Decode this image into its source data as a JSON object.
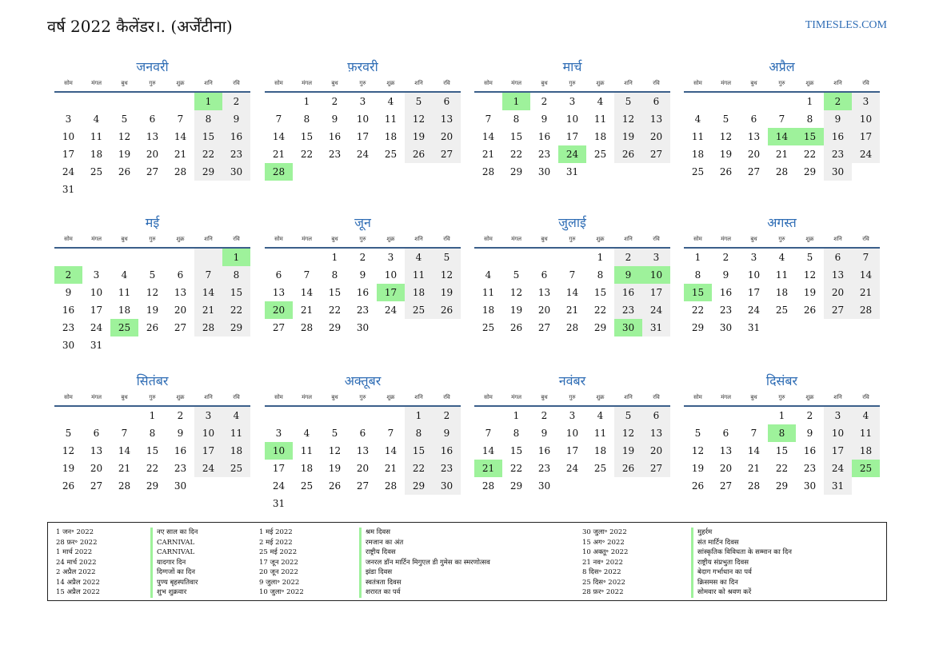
{
  "header": {
    "title": "वर्ष 2022 कैलेंडर।. (अर्जेंटीना)",
    "site": "TIMESLES.COM"
  },
  "weekdays": [
    "सोम",
    "मंगल",
    "बुध",
    "गुरु",
    "शुक्र",
    "शनि",
    "रवि"
  ],
  "months": [
    {
      "name": "जनवरी",
      "offset": 5,
      "days": 31,
      "holidays": [
        1
      ]
    },
    {
      "name": "फ़रवरी",
      "offset": 1,
      "days": 28,
      "holidays": [
        28
      ]
    },
    {
      "name": "मार्च",
      "offset": 1,
      "days": 31,
      "holidays": [
        1,
        24
      ]
    },
    {
      "name": "अप्रैल",
      "offset": 4,
      "days": 30,
      "holidays": [
        2,
        14,
        15
      ]
    },
    {
      "name": "मई",
      "offset": 6,
      "days": 31,
      "holidays": [
        1,
        2,
        25
      ]
    },
    {
      "name": "जून",
      "offset": 2,
      "days": 30,
      "holidays": [
        17,
        20
      ]
    },
    {
      "name": "जुलाई",
      "offset": 4,
      "days": 31,
      "holidays": [
        9,
        10,
        30
      ]
    },
    {
      "name": "अगस्त",
      "offset": 0,
      "days": 31,
      "holidays": [
        15
      ]
    },
    {
      "name": "सितंबर",
      "offset": 3,
      "days": 30,
      "holidays": []
    },
    {
      "name": "अक्तूबर",
      "offset": 5,
      "days": 31,
      "holidays": [
        10
      ]
    },
    {
      "name": "नवंबर",
      "offset": 1,
      "days": 30,
      "holidays": [
        21
      ]
    },
    {
      "name": "दिसंबर",
      "offset": 3,
      "days": 31,
      "holidays": [
        8,
        25
      ]
    }
  ],
  "colors": {
    "holiday": "#9ef29b",
    "weekend": "#efefef",
    "accent": "#2f6db5"
  },
  "legend": {
    "col1_dates": [
      "1 जन॰ 2022",
      "28 फ़र॰ 2022",
      "1 मार्च 2022",
      "24 मार्च 2022",
      "2 अप्रैल 2022",
      "14 अप्रैल 2022",
      "15 अप्रैल 2022"
    ],
    "col1_names": [
      "नए साल का दिन",
      "CARNIVAL",
      "CARNIVAL",
      "यादगार दिन",
      "दिग्गजों का दिन",
      "पुण्य बृहस्पतिवार",
      "शुभ शुक्रवार"
    ],
    "col2_dates": [
      "1 मई 2022",
      "2 मई 2022",
      "25 मई 2022",
      "17 जून 2022",
      "20 जून 2022",
      "9 जुला॰ 2022",
      "10 जुला॰ 2022"
    ],
    "col2_names": [
      "श्रम दिवस",
      "रमजान का अंत",
      "राष्ट्रीय दिवस",
      "जनरल डॉन मार्टिन मिगुएल डी गुमेस का स्मरणोत्सव",
      "झंडा दिवस",
      "स्वतंत्रता दिवस",
      "शरारत का पर्व"
    ],
    "col3_dates": [
      "30 जुला॰ 2022",
      "15 अग॰ 2022",
      "10 अक्तू॰ 2022",
      "21 नव॰ 2022",
      "8 दिस॰ 2022",
      "25 दिस॰ 2022",
      "28 फ़र॰ 2022"
    ],
    "col3_names": [
      "मुहर्रम",
      "संत मार्टिन दिवस",
      "सांस्कृतिक विविधता के सम्मान का दिन",
      "राष्ट्रीय संप्रभुता दिवस",
      "बेदाग गर्भाधान का पर्व",
      "क्रिसमस का दिन",
      "सोमवार को श्रवण करें"
    ]
  }
}
